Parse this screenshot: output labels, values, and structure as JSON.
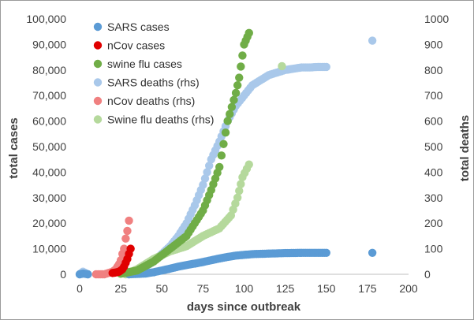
{
  "chart_data": {
    "type": "scatter",
    "xlabel": "days since outbreak",
    "ylabel": "total cases",
    "ylabel_right": "total deaths",
    "xlim": [
      0,
      200
    ],
    "ylim": [
      0,
      100000
    ],
    "ylim_right": [
      0,
      1000
    ],
    "x_ticks": [
      "0",
      "25",
      "50",
      "75",
      "100",
      "125",
      "150",
      "175",
      "200"
    ],
    "y_ticks": [
      "0",
      "10,000",
      "20,000",
      "30,000",
      "40,000",
      "50,000",
      "60,000",
      "70,000",
      "80,000",
      "90,000",
      "100,000"
    ],
    "y_right_ticks": [
      "0",
      "100",
      "200",
      "300",
      "400",
      "500",
      "600",
      "700",
      "800",
      "900",
      "1000"
    ],
    "x_tick_values": [
      0,
      25,
      50,
      75,
      100,
      125,
      150,
      175,
      200
    ],
    "y_tick_values": [
      0,
      10000,
      20000,
      30000,
      40000,
      50000,
      60000,
      70000,
      80000,
      90000,
      100000
    ],
    "y_right_tick_values": [
      0,
      100,
      200,
      300,
      400,
      500,
      600,
      700,
      800,
      900,
      1000
    ],
    "grid": false,
    "legend_position": "top-left",
    "series": [
      {
        "name": "SARS cases",
        "axis": "left",
        "color": "#5b9bd5",
        "points": [
          [
            0,
            0
          ],
          [
            2,
            300
          ],
          [
            5,
            0
          ],
          [
            30,
            0
          ],
          [
            40,
            300
          ],
          [
            45,
            800
          ],
          [
            50,
            1500
          ],
          [
            55,
            2200
          ],
          [
            60,
            3000
          ],
          [
            65,
            3600
          ],
          [
            70,
            4200
          ],
          [
            75,
            4800
          ],
          [
            80,
            5500
          ],
          [
            85,
            6200
          ],
          [
            90,
            6800
          ],
          [
            95,
            7300
          ],
          [
            100,
            7600
          ],
          [
            105,
            7900
          ],
          [
            110,
            8000
          ],
          [
            115,
            8100
          ],
          [
            120,
            8200
          ],
          [
            125,
            8300
          ],
          [
            130,
            8350
          ],
          [
            135,
            8400
          ],
          [
            140,
            8400
          ],
          [
            145,
            8400
          ],
          [
            150,
            8400
          ],
          [
            178,
            8400
          ]
        ]
      },
      {
        "name": "nCov cases",
        "axis": "left",
        "color": "#e00000",
        "points": [
          [
            20,
            500
          ],
          [
            22,
            700
          ],
          [
            24,
            1000
          ],
          [
            25,
            1500
          ],
          [
            26,
            2000
          ],
          [
            27,
            3000
          ],
          [
            28,
            4500
          ],
          [
            29,
            6000
          ],
          [
            30,
            8000
          ],
          [
            31,
            10000
          ]
        ]
      },
      {
        "name": "swine flu cases",
        "axis": "left",
        "color": "#70ad47",
        "points": [
          [
            25,
            200
          ],
          [
            35,
            1500
          ],
          [
            45,
            5000
          ],
          [
            55,
            10000
          ],
          [
            65,
            15000
          ],
          [
            70,
            20000
          ],
          [
            75,
            25000
          ],
          [
            80,
            33000
          ],
          [
            85,
            42000
          ],
          [
            90,
            60000
          ],
          [
            95,
            71000
          ],
          [
            97,
            77000
          ],
          [
            100,
            90000
          ],
          [
            103,
            94500
          ]
        ]
      },
      {
        "name": "SARS deaths (rhs)",
        "axis": "right",
        "color": "#a9c8ea",
        "points": [
          [
            0,
            0
          ],
          [
            2,
            10
          ],
          [
            5,
            0
          ],
          [
            30,
            0
          ],
          [
            35,
            10
          ],
          [
            40,
            30
          ],
          [
            45,
            50
          ],
          [
            50,
            80
          ],
          [
            55,
            110
          ],
          [
            60,
            150
          ],
          [
            65,
            200
          ],
          [
            70,
            270
          ],
          [
            75,
            350
          ],
          [
            80,
            450
          ],
          [
            85,
            520
          ],
          [
            90,
            600
          ],
          [
            95,
            660
          ],
          [
            100,
            700
          ],
          [
            105,
            740
          ],
          [
            110,
            760
          ],
          [
            115,
            780
          ],
          [
            120,
            790
          ],
          [
            125,
            800
          ],
          [
            130,
            805
          ],
          [
            135,
            810
          ],
          [
            140,
            810
          ],
          [
            145,
            812
          ],
          [
            150,
            812
          ],
          [
            178,
            915
          ]
        ]
      },
      {
        "name": "nCov deaths (rhs)",
        "axis": "right",
        "color": "#f08080",
        "points": [
          [
            10,
            0
          ],
          [
            15,
            0
          ],
          [
            20,
            10
          ],
          [
            22,
            20
          ],
          [
            24,
            40
          ],
          [
            25,
            55
          ],
          [
            26,
            80
          ],
          [
            27,
            100
          ],
          [
            28,
            140
          ],
          [
            29,
            170
          ],
          [
            30,
            210
          ]
        ]
      },
      {
        "name": "Swine flu deaths (rhs)",
        "axis": "right",
        "color": "#b5d99c",
        "points": [
          [
            28,
            0
          ],
          [
            35,
            20
          ],
          [
            45,
            60
          ],
          [
            55,
            90
          ],
          [
            65,
            110
          ],
          [
            75,
            150
          ],
          [
            85,
            180
          ],
          [
            92,
            230
          ],
          [
            96,
            300
          ],
          [
            99,
            380
          ],
          [
            103,
            430
          ],
          [
            123,
            815
          ]
        ]
      }
    ]
  }
}
